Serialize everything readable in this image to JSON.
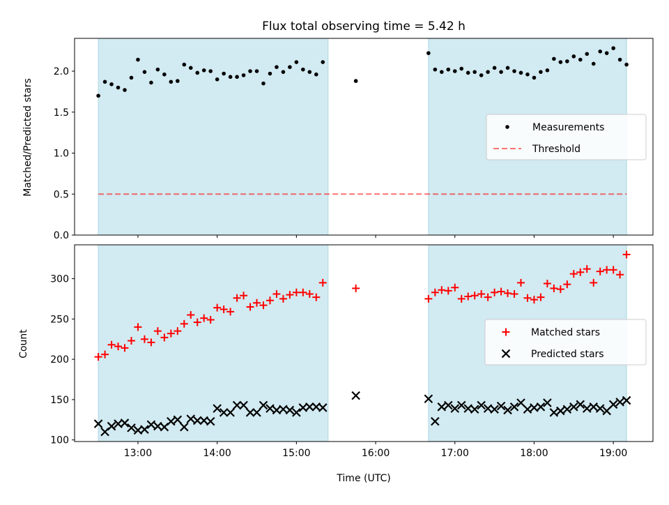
{
  "figure": {
    "title": "Flux total observing time = 5.42 h",
    "xlabel": "Time (UTC)"
  },
  "colors": {
    "shade": "#add8e6",
    "measurement": "#000000",
    "threshold": "#ff0000",
    "matched": "#ff0000",
    "predicted": "#000000"
  },
  "chart_data": [
    {
      "type": "scatter",
      "panel": "top",
      "ylabel": "Matched/Predicted stars",
      "xlim": [
        "12:12",
        "19:30"
      ],
      "ylim": [
        0,
        2.4
      ],
      "x_tick_labels": [],
      "y_ticks": [
        "0.0",
        "0.5",
        "1.0",
        "1.5",
        "2.0"
      ],
      "grid": false,
      "legend_position": "center-right",
      "shaded_intervals": [
        [
          "12:30",
          "15:24"
        ],
        [
          "16:40",
          "19:10"
        ]
      ],
      "threshold": {
        "name": "Threshold",
        "value": 0.5,
        "x": [
          "12:30",
          "19:10"
        ]
      },
      "series": [
        {
          "name": "Measurements",
          "x": [
            "12:30",
            "12:35",
            "12:40",
            "12:45",
            "12:50",
            "12:55",
            "13:00",
            "13:05",
            "13:10",
            "13:15",
            "13:20",
            "13:25",
            "13:30",
            "13:35",
            "13:40",
            "13:45",
            "13:50",
            "13:55",
            "14:00",
            "14:05",
            "14:10",
            "14:15",
            "14:20",
            "14:25",
            "14:30",
            "14:35",
            "14:40",
            "14:45",
            "14:50",
            "14:55",
            "15:00",
            "15:05",
            "15:10",
            "15:15",
            "15:20",
            "15:45",
            "16:40",
            "16:45",
            "16:50",
            "16:55",
            "17:00",
            "17:05",
            "17:10",
            "17:15",
            "17:20",
            "17:25",
            "17:30",
            "17:35",
            "17:40",
            "17:45",
            "17:50",
            "17:55",
            "18:00",
            "18:05",
            "18:10",
            "18:15",
            "18:20",
            "18:25",
            "18:30",
            "18:35",
            "18:40",
            "18:45",
            "18:50",
            "18:55",
            "19:00",
            "19:05",
            "19:10"
          ],
          "y": [
            1.7,
            1.87,
            1.84,
            1.8,
            1.77,
            1.92,
            2.14,
            1.99,
            1.86,
            2.02,
            1.96,
            1.87,
            1.88,
            2.08,
            2.04,
            1.98,
            2.01,
            2.0,
            1.9,
            1.97,
            1.93,
            1.93,
            1.95,
            2.0,
            2.0,
            1.85,
            1.97,
            2.05,
            1.99,
            2.05,
            2.11,
            2.02,
            1.99,
            1.96,
            2.11,
            1.88,
            2.22,
            2.02,
            1.99,
            2.02,
            2.0,
            2.03,
            1.98,
            1.99,
            1.95,
            1.99,
            2.04,
            1.99,
            2.04,
            2.0,
            1.98,
            1.96,
            1.92,
            1.99,
            2.01,
            2.15,
            2.11,
            2.12,
            2.18,
            2.14,
            2.21,
            2.09,
            2.24,
            2.22,
            2.28,
            2.14,
            2.08
          ]
        }
      ]
    },
    {
      "type": "scatter",
      "panel": "bottom",
      "ylabel": "Count",
      "xlim": [
        "12:12",
        "19:30"
      ],
      "ylim": [
        98,
        342
      ],
      "x_tick_labels": [
        "13:00",
        "14:00",
        "15:00",
        "16:00",
        "17:00",
        "18:00",
        "19:00"
      ],
      "y_ticks": [
        "100",
        "150",
        "200",
        "250",
        "300"
      ],
      "grid": false,
      "legend_position": "center-right",
      "shaded_intervals": [
        [
          "12:30",
          "15:24"
        ],
        [
          "16:40",
          "19:10"
        ]
      ],
      "series": [
        {
          "name": "Matched stars",
          "marker": "plus",
          "x": [
            "12:30",
            "12:35",
            "12:40",
            "12:45",
            "12:50",
            "12:55",
            "13:00",
            "13:05",
            "13:10",
            "13:15",
            "13:20",
            "13:25",
            "13:30",
            "13:35",
            "13:40",
            "13:45",
            "13:50",
            "13:55",
            "14:00",
            "14:05",
            "14:10",
            "14:15",
            "14:20",
            "14:25",
            "14:30",
            "14:35",
            "14:40",
            "14:45",
            "14:50",
            "14:55",
            "15:00",
            "15:05",
            "15:10",
            "15:15",
            "15:20",
            "15:45",
            "16:40",
            "16:45",
            "16:50",
            "16:55",
            "17:00",
            "17:05",
            "17:10",
            "17:15",
            "17:20",
            "17:25",
            "17:30",
            "17:35",
            "17:40",
            "17:45",
            "17:50",
            "17:55",
            "18:00",
            "18:05",
            "18:10",
            "18:15",
            "18:20",
            "18:25",
            "18:30",
            "18:35",
            "18:40",
            "18:45",
            "18:50",
            "18:55",
            "19:00",
            "19:05",
            "19:10"
          ],
          "y": [
            203,
            206,
            218,
            216,
            214,
            223,
            240,
            225,
            221,
            235,
            227,
            232,
            235,
            244,
            255,
            246,
            251,
            249,
            264,
            262,
            259,
            276,
            279,
            265,
            270,
            267,
            273,
            281,
            275,
            280,
            283,
            283,
            281,
            277,
            295,
            288,
            275,
            283,
            286,
            285,
            289,
            275,
            278,
            279,
            281,
            277,
            283,
            284,
            282,
            281,
            295,
            276,
            274,
            277,
            294,
            288,
            287,
            293,
            306,
            308,
            312,
            295,
            309,
            311,
            311,
            305,
            330
          ]
        },
        {
          "name": "Predicted stars",
          "marker": "x",
          "x": [
            "12:30",
            "12:35",
            "12:40",
            "12:45",
            "12:50",
            "12:55",
            "13:00",
            "13:05",
            "13:10",
            "13:15",
            "13:20",
            "13:25",
            "13:30",
            "13:35",
            "13:40",
            "13:45",
            "13:50",
            "13:55",
            "14:00",
            "14:05",
            "14:10",
            "14:15",
            "14:20",
            "14:25",
            "14:30",
            "14:35",
            "14:40",
            "14:45",
            "14:50",
            "14:55",
            "15:00",
            "15:05",
            "15:10",
            "15:15",
            "15:20",
            "15:45",
            "16:40",
            "16:45",
            "16:50",
            "16:55",
            "17:00",
            "17:05",
            "17:10",
            "17:15",
            "17:20",
            "17:25",
            "17:30",
            "17:35",
            "17:40",
            "17:45",
            "17:50",
            "17:55",
            "18:00",
            "18:05",
            "18:10",
            "18:15",
            "18:20",
            "18:25",
            "18:30",
            "18:35",
            "18:40",
            "18:45",
            "18:50",
            "18:55",
            "19:00",
            "19:05",
            "19:10"
          ],
          "y": [
            120,
            110,
            117,
            120,
            121,
            115,
            112,
            113,
            119,
            117,
            116,
            123,
            125,
            116,
            126,
            124,
            124,
            123,
            139,
            134,
            134,
            143,
            143,
            134,
            134,
            143,
            139,
            137,
            138,
            137,
            134,
            140,
            141,
            141,
            140,
            155,
            151,
            123,
            141,
            143,
            139,
            143,
            139,
            138,
            143,
            139,
            138,
            142,
            137,
            141,
            146,
            138,
            140,
            141,
            146,
            134,
            136,
            138,
            141,
            144,
            139,
            141,
            139,
            136,
            144,
            147,
            149
          ]
        }
      ]
    }
  ]
}
